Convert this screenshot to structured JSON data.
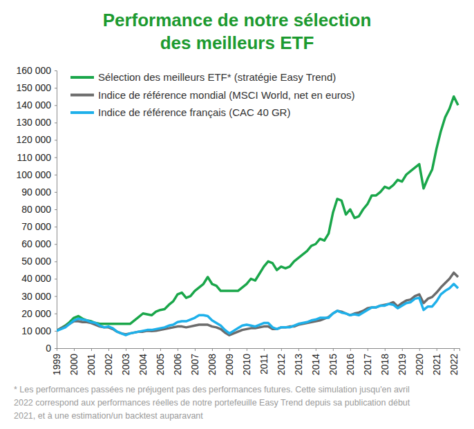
{
  "chart_data": {
    "type": "line",
    "title": [
      "Performance de notre sélection",
      "des meilleurs ETF"
    ],
    "note": [
      "* Les performances passées ne préjugent pas des performances futures. Cette simulation jusqu'en avril",
      "2022 correspond aux performances réelles de notre portefeuille Easy Trend depuis sa publication début",
      "2021, et à une estimation/un backtest auparavant"
    ],
    "legend": "upper left",
    "grid": false,
    "x": [
      1999,
      1999.25,
      1999.5,
      1999.75,
      2000,
      2000.25,
      2000.5,
      2000.75,
      2001,
      2001.25,
      2001.5,
      2001.75,
      2002,
      2002.25,
      2002.5,
      2002.75,
      2003,
      2003.25,
      2003.5,
      2003.75,
      2004,
      2004.25,
      2004.5,
      2004.75,
      2005,
      2005.25,
      2005.5,
      2005.75,
      2006,
      2006.25,
      2006.5,
      2006.75,
      2007,
      2007.25,
      2007.5,
      2007.75,
      2008,
      2008.25,
      2008.5,
      2008.75,
      2009,
      2009.25,
      2009.5,
      2009.75,
      2010,
      2010.25,
      2010.5,
      2010.75,
      2011,
      2011.25,
      2011.5,
      2011.75,
      2012,
      2012.25,
      2012.5,
      2012.75,
      2013,
      2013.25,
      2013.5,
      2013.75,
      2014,
      2014.25,
      2014.5,
      2014.75,
      2015,
      2015.25,
      2015.5,
      2015.75,
      2016,
      2016.25,
      2016.5,
      2016.75,
      2017,
      2017.25,
      2017.5,
      2017.75,
      2018,
      2018.25,
      2018.5,
      2018.75,
      2019,
      2019.25,
      2019.5,
      2019.75,
      2020,
      2020.25,
      2020.5,
      2020.75,
      2021,
      2021.25,
      2021.5,
      2021.75,
      2022,
      2022.25
    ],
    "series": [
      {
        "name": "Sélection des meilleurs ETF* (stratégie Easy Trend)",
        "color": "#1aa64a",
        "values": [
          10000,
          11500,
          13000,
          15000,
          17500,
          18500,
          17000,
          16000,
          15500,
          14500,
          14000,
          14000,
          14000,
          14000,
          14000,
          14000,
          14000,
          14000,
          16000,
          18000,
          20000,
          19500,
          19000,
          21000,
          22000,
          22500,
          25000,
          27000,
          31000,
          32000,
          29000,
          30000,
          33000,
          35000,
          37000,
          41000,
          37000,
          36000,
          33000,
          33000,
          33000,
          33000,
          33000,
          35000,
          37000,
          40000,
          39000,
          43000,
          47000,
          50000,
          49000,
          45000,
          47000,
          46000,
          47000,
          50000,
          52000,
          54000,
          56000,
          59000,
          60000,
          63000,
          62000,
          66000,
          78000,
          86000,
          85000,
          77000,
          80000,
          75000,
          76000,
          80000,
          83000,
          88000,
          88000,
          90000,
          93000,
          92000,
          94000,
          97000,
          96000,
          100000,
          102000,
          104000,
          106000,
          92000,
          98000,
          103000,
          115000,
          125000,
          133000,
          138000,
          145000,
          140000
        ]
      },
      {
        "name": "Indice de référence mondial (MSCI World, net en euros)",
        "color": "#6b6b6b",
        "values": [
          10000,
          11500,
          12500,
          14000,
          15500,
          15500,
          15000,
          15000,
          14500,
          13500,
          12500,
          12000,
          12000,
          11000,
          9500,
          8500,
          8000,
          8500,
          9000,
          9500,
          9500,
          10000,
          9800,
          10000,
          10500,
          11000,
          11500,
          12000,
          12500,
          12500,
          12000,
          12500,
          13000,
          13500,
          13500,
          13500,
          12500,
          12000,
          11000,
          9000,
          7500,
          8500,
          9500,
          10500,
          11000,
          11500,
          11500,
          12000,
          12500,
          12500,
          11000,
          11000,
          12000,
          12000,
          12500,
          12500,
          13500,
          14000,
          14500,
          15000,
          15500,
          16000,
          17000,
          18000,
          20000,
          21500,
          21000,
          20000,
          19000,
          20000,
          20500,
          21500,
          23000,
          23500,
          23500,
          24500,
          25000,
          25500,
          26500,
          24000,
          26000,
          27500,
          28000,
          30000,
          31000,
          26000,
          28500,
          29500,
          32000,
          35000,
          37500,
          40000,
          43500,
          41000
        ]
      },
      {
        "name": "Indice de référence français (CAC 40 GR)",
        "color": "#1eb0ea",
        "values": [
          10000,
          11000,
          12000,
          14000,
          16000,
          17000,
          16500,
          16000,
          15000,
          14500,
          13000,
          12000,
          12500,
          11500,
          9500,
          8500,
          7500,
          8500,
          9000,
          9500,
          10000,
          10500,
          10500,
          11000,
          11500,
          12000,
          13000,
          13500,
          15000,
          15500,
          15500,
          16500,
          17500,
          19000,
          19000,
          18500,
          16000,
          14500,
          13000,
          10500,
          8500,
          10000,
          11500,
          13000,
          13500,
          13000,
          12500,
          13500,
          14500,
          14500,
          12000,
          11000,
          12000,
          12000,
          12000,
          13000,
          14000,
          14500,
          15000,
          16000,
          16500,
          17500,
          17500,
          17500,
          20000,
          21500,
          20500,
          20000,
          19000,
          19500,
          19000,
          20500,
          22000,
          23500,
          23500,
          24500,
          24500,
          25500,
          25000,
          23000,
          24500,
          26000,
          26500,
          28500,
          29000,
          22000,
          24000,
          24000,
          27000,
          31000,
          33000,
          34500,
          37000,
          34500
        ]
      }
    ],
    "xlim": [
      1999,
      2022.33
    ],
    "xticks": [
      1999,
      2000,
      2001,
      2002,
      2003,
      2004,
      2005,
      2006,
      2007,
      2008,
      2009,
      2010,
      2011,
      2012,
      2013,
      2014,
      2015,
      2016,
      2017,
      2018,
      2019,
      2020,
      2021,
      2022
    ],
    "ylim": [
      0,
      160000
    ],
    "yticks": [
      0,
      {
        "value": 10000,
        "label": "10 000"
      },
      {
        "value": 20000,
        "label": "20 000"
      },
      {
        "value": 30000,
        "label": "30 000"
      },
      {
        "value": 40000,
        "label": "40 000"
      },
      {
        "value": 50000,
        "label": "50 000"
      },
      {
        "value": 60000,
        "label": "60 000"
      },
      {
        "value": 70000,
        "label": "70 000"
      },
      {
        "value": 80000,
        "label": "80 000"
      },
      {
        "value": 90000,
        "label": "90 000"
      },
      {
        "value": 100000,
        "label": "100 000"
      },
      {
        "value": 110000,
        "label": "110 000"
      },
      {
        "value": 120000,
        "label": "120 000"
      },
      {
        "value": 130000,
        "label": "130 000"
      },
      {
        "value": 140000,
        "label": "140 000"
      },
      {
        "value": 150000,
        "label": "150 000"
      },
      {
        "value": 160000,
        "label": "160 000"
      }
    ]
  }
}
